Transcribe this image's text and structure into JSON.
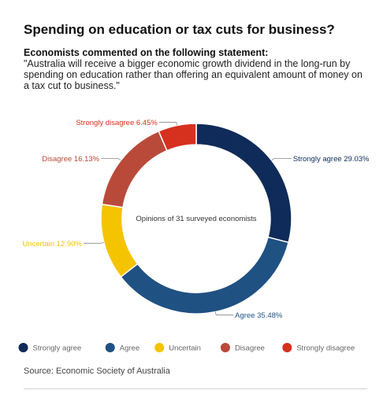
{
  "chart_data": {
    "type": "pie",
    "title": "Spending on education or tax cuts for business?",
    "subtitle_heading": "Economists commented on the following statement:",
    "subtitle": "\"Australia will receive a bigger economic growth dividend in the long-run by spending on education rather than offering an equivalent amount of money on a tax cut to business.\"",
    "center_label": "Opinions of 31 surveyed economists",
    "donut": true,
    "legend_position": "bottom",
    "slices": [
      {
        "name": "Strongly agree",
        "value": 29.03,
        "label": "Strongly agree 29.03%",
        "color": "#0f2b59"
      },
      {
        "name": "Agree",
        "value": 35.48,
        "label": "Agree 35.48%",
        "color": "#1f5183"
      },
      {
        "name": "Uncertain",
        "value": 12.9,
        "label": "Uncertain 12.90%",
        "color": "#f5c400"
      },
      {
        "name": "Disagree",
        "value": 16.13,
        "label": "Disagree 16.13%",
        "color": "#b94a3a"
      },
      {
        "name": "Strongly disagree",
        "value": 6.45,
        "label": "Strongly disagree 6.45%",
        "color": "#d6301f"
      }
    ],
    "source": "Source: Economic Society of Australia"
  }
}
